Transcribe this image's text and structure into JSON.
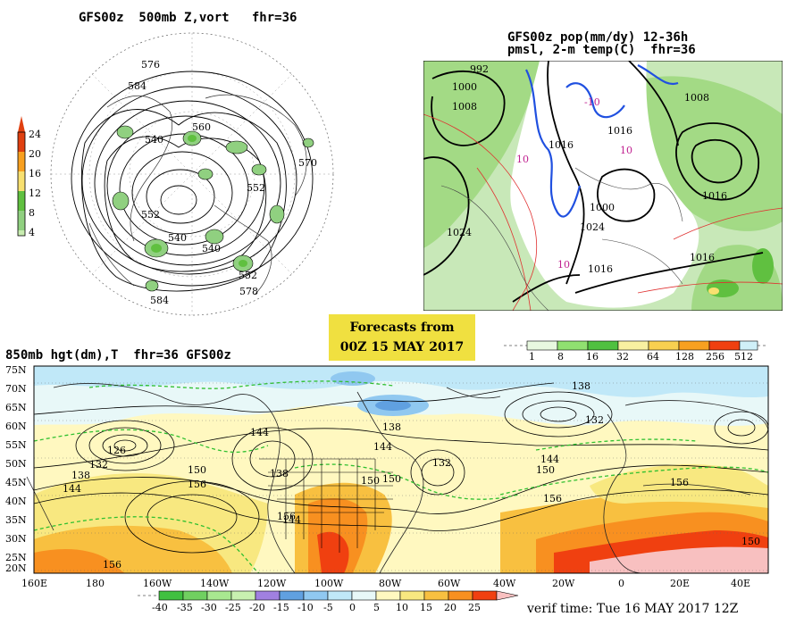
{
  "panel_top_left": {
    "title": "GFS00z  500mb Z,vort   fhr=36",
    "legend_labels": [
      "24",
      "20",
      "16",
      "12",
      "8",
      "4"
    ],
    "legend_colors": [
      "#e04010",
      "#f8a020",
      "#f8e070",
      "#60c040",
      "#90d080",
      "#c8ecb0"
    ],
    "contour_labels": [
      "576",
      "584",
      "540",
      "552",
      "560",
      "570",
      "552",
      "540",
      "578",
      "584",
      "552",
      "540"
    ]
  },
  "panel_top_right": {
    "title_line1": "GFS00z pop(mm/dy) 12-36h",
    "title_line2": "pmsl, 2-m temp(C)  fhr=36",
    "contour_labels": [
      "992",
      "1000",
      "1008",
      "1016",
      "1024",
      "1008",
      "1016",
      "1000",
      "1024",
      "1016",
      "1016",
      "1016"
    ],
    "temp_labels": [
      "-10",
      "10",
      "10",
      "10"
    ],
    "legend_labels": [
      "1",
      "8",
      "16",
      "32",
      "64",
      "128",
      "256",
      "512"
    ],
    "legend_colors": [
      "#e8f8e0",
      "#90e070",
      "#50c040",
      "#f8f0a0",
      "#f8d050",
      "#f8a020",
      "#f04010",
      "#d0f0f8"
    ]
  },
  "banner": {
    "line1": "Forecasts from",
    "line2": "00Z 15 MAY 2017"
  },
  "panel_bottom": {
    "title": "850mb hgt(dm),T  fhr=36 GFS00z",
    "lat_labels": [
      "75N",
      "70N",
      "65N",
      "60N",
      "55N",
      "50N",
      "45N",
      "40N",
      "35N",
      "30N",
      "25N",
      "20N"
    ],
    "lon_labels": [
      "160E",
      "180",
      "160W",
      "140W",
      "120W",
      "100W",
      "80W",
      "60W",
      "40W",
      "20W",
      "0",
      "20E",
      "40E"
    ],
    "contour_labels": [
      "126",
      "132",
      "138",
      "144",
      "150",
      "156",
      "144",
      "138",
      "150",
      "132",
      "138",
      "144",
      "150",
      "156",
      "132",
      "138",
      "144",
      "150",
      "156",
      "144",
      "156",
      "156",
      "150"
    ],
    "legend_labels": [
      "-40",
      "-35",
      "-30",
      "-25",
      "-20",
      "-15",
      "-10",
      "-5",
      "0",
      "5",
      "10",
      "15",
      "20",
      "25"
    ],
    "legend_colors": [
      "#40c040",
      "#70d060",
      "#a8e890",
      "#c8f0b0",
      "#a080e0",
      "#60a0e0",
      "#90c8f0",
      "#c0e8f8",
      "#e8f8f8",
      "#fff8c0",
      "#f8e880",
      "#f8c040",
      "#f89020",
      "#f04010",
      "#f8c0c0"
    ]
  },
  "verif": "verif time: Tue 16 MAY 2017 12Z"
}
